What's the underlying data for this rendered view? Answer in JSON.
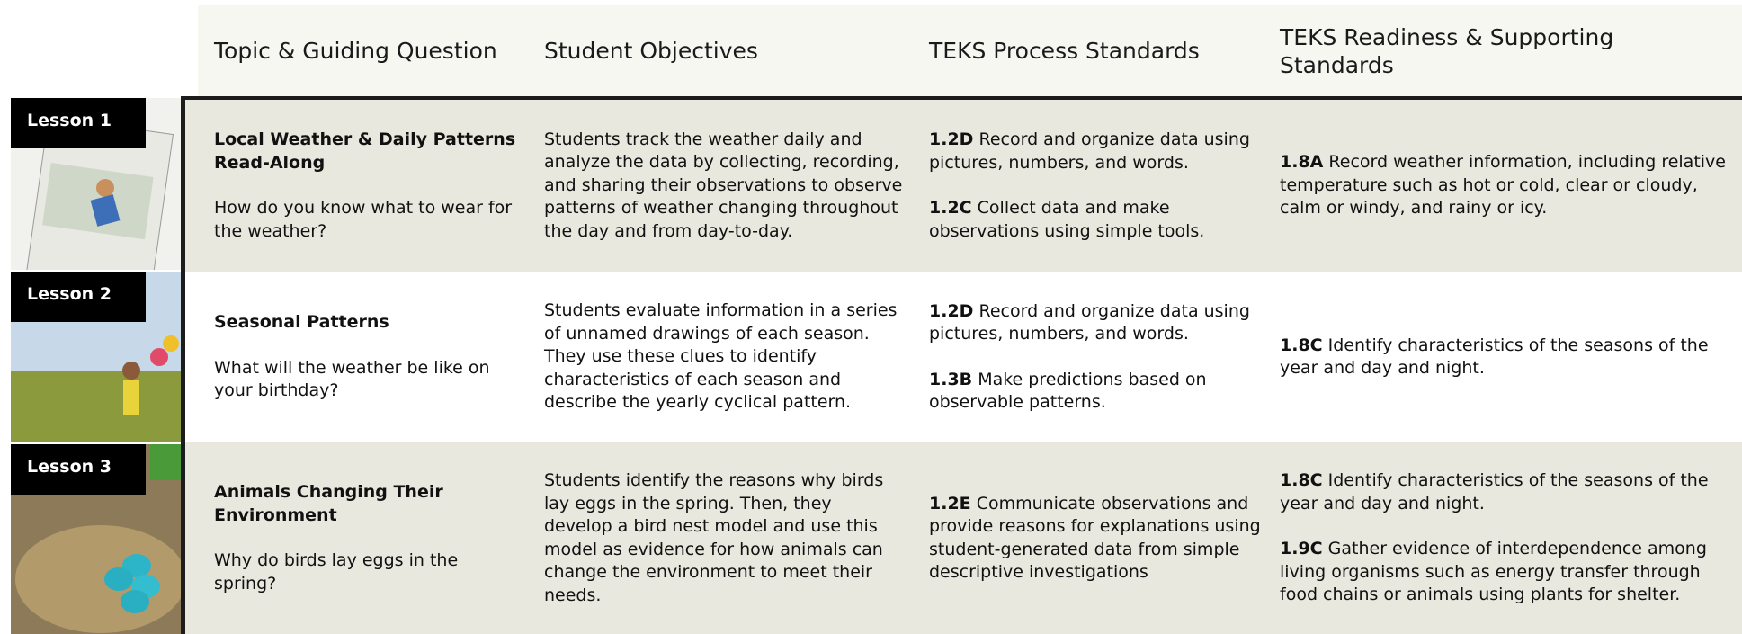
{
  "header": {
    "columns": [
      "Topic & Guiding Question",
      "Student Objectives",
      "TEKS Process Standards",
      "TEKS Readiness & Supporting Standards"
    ]
  },
  "rows": [
    {
      "lesson": "Lesson 1",
      "title": "Local Weather & Daily Patterns Read-Along",
      "question": "How do you know what to wear for the weather?",
      "objectives": "Students track the weather daily and analyze the data by collecting, recording, and sharing their observations to observe patterns of weather changing throughout the day and from day-to-day.",
      "process": [
        {
          "code": "1.2D",
          "text": "Record and organize data using pictures, numbers, and words."
        },
        {
          "code": "1.2C",
          "text": "Collect data and make observations using simple tools."
        }
      ],
      "readiness": [
        {
          "code": "1.8A",
          "text": "Record weather information, including relative temperature such as hot or cold, clear or cloudy, calm or windy, and rainy or icy."
        }
      ]
    },
    {
      "lesson": "Lesson 2",
      "title": "Seasonal Patterns",
      "question": "What will the weather be like on your birthday?",
      "objectives": "Students evaluate information in a series of unnamed drawings of each season. They use these clues to identify characteristics of each season and describe the yearly cyclical pattern.",
      "process": [
        {
          "code": "1.2D",
          "text": "Record and organize data using pictures, numbers, and words."
        },
        {
          "code": "1.3B",
          "text": "Make predictions based on observable patterns."
        }
      ],
      "readiness": [
        {
          "code": "1.8C",
          "text": "Identify characteristics of the seasons of the year and day and night."
        }
      ]
    },
    {
      "lesson": "Lesson 3",
      "title": "Animals Changing Their Environment",
      "question": "Why do birds lay eggs in the spring?",
      "objectives": "Students identify the reasons why birds lay eggs in the spring. Then, they develop a bird nest model and use this model as evidence for how animals can change the environment to meet their needs.",
      "process": [
        {
          "code": "1.2E",
          "text": "Communicate observations and provide reasons for explanations using student-generated data from simple descriptive investigations"
        }
      ],
      "readiness": [
        {
          "code": "1.8C",
          "text": "Identify characteristics of the seasons of the year and day and night."
        },
        {
          "code": "1.9C",
          "text": "Gather evidence of interdependence among living organisms such as energy transfer through food chains or animals using plants for shelter."
        }
      ]
    }
  ]
}
